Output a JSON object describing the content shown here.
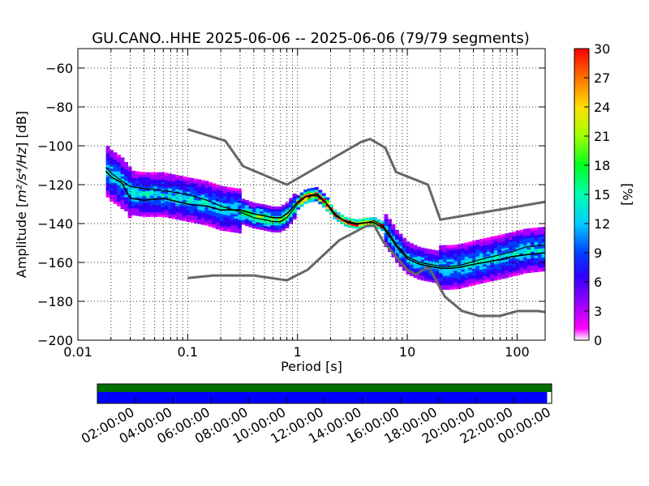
{
  "chart_data": {
    "type": "heatmap",
    "title": "GU.CANO..HHE   2025-06-06 -- 2025-06-06  (79/79 segments)",
    "xlabel": "Period [s]",
    "ylabel_prefix": "Amplitude [",
    "ylabel_math": "m²/s⁴/Hz",
    "ylabel_suffix": "] [dB]",
    "xscale": "log",
    "xlim": [
      0.01,
      180
    ],
    "ylim": [
      -200,
      -50
    ],
    "xticks": [
      0.01,
      0.1,
      1,
      10,
      100
    ],
    "xtick_labels": [
      "0.01",
      "0.1",
      "1",
      "10",
      "100"
    ],
    "yticks": [
      -60,
      -80,
      -100,
      -120,
      -140,
      -160,
      -180,
      -200
    ],
    "ytick_labels": [
      "−60",
      "−80",
      "−100",
      "−120",
      "−140",
      "−160",
      "−180",
      "−200"
    ],
    "grid": true,
    "colorbar": {
      "label": "[%]",
      "min": 0,
      "max": 30,
      "ticks": [
        0,
        3,
        6,
        9,
        12,
        15,
        18,
        21,
        24,
        27,
        30
      ],
      "tick_labels": [
        "0",
        "3",
        "6",
        "9",
        "12",
        "15",
        "18",
        "21",
        "24",
        "27",
        "30"
      ]
    },
    "noise_model_high": {
      "name": "",
      "x": [
        0.1,
        0.22,
        0.32,
        0.8,
        3.8,
        4.6,
        6.3,
        7.9,
        15.4,
        20,
        354
      ],
      "y": [
        -91.5,
        -97.4,
        -110.5,
        -120,
        -98,
        -96.5,
        -101,
        -113.5,
        -120,
        -138,
        -126
      ]
    },
    "noise_model_low": {
      "name": "",
      "x": [
        0.1,
        0.17,
        0.4,
        0.8,
        1.24,
        2.4,
        4.3,
        5,
        6,
        10,
        12,
        15.6,
        21.9,
        31.6,
        45,
        70,
        101,
        154,
        328
      ],
      "y": [
        -168,
        -166.7,
        -166.7,
        -169.2,
        -163.7,
        -148.6,
        -141.1,
        -141.1,
        -149,
        -163.8,
        -166.2,
        -162.1,
        -177.5,
        -185,
        -187.5,
        -187.5,
        -185,
        -185,
        -187.5
      ]
    },
    "mean_psd": {
      "x": [
        0.018,
        0.02,
        0.025,
        0.03,
        0.04,
        0.06,
        0.1,
        0.15,
        0.2,
        0.3,
        0.4,
        0.5,
        0.6,
        0.7,
        0.8,
        1,
        1.2,
        1.5,
        1.8,
        2.2,
        2.8,
        3.5,
        4.2,
        5,
        6,
        7,
        8,
        10,
        13,
        16,
        20,
        25,
        30,
        40,
        50,
        70,
        90,
        120,
        180
      ],
      "y": [
        -113,
        -116,
        -119,
        -127,
        -128,
        -127,
        -130,
        -131,
        -133,
        -133,
        -135,
        -136,
        -137,
        -137,
        -135,
        -129,
        -126,
        -125.5,
        -129,
        -136,
        -139,
        -140,
        -139.5,
        -139.5,
        -142,
        -147,
        -152,
        -158,
        -161,
        -162,
        -163,
        -163,
        -162.5,
        -161,
        -160,
        -158.5,
        -157,
        -156,
        -155
      ]
    },
    "mode_psd": {
      "x": [
        0.018,
        0.02,
        0.025,
        0.03,
        0.04,
        0.06,
        0.1,
        0.15,
        0.2,
        0.3,
        0.4,
        0.5,
        0.6,
        0.7,
        0.8,
        1,
        1.2,
        1.5,
        1.8,
        2.2,
        2.8,
        3.5,
        4.2,
        5,
        6,
        7,
        8,
        10,
        13,
        16,
        20,
        25,
        30,
        40,
        50,
        70,
        90,
        120,
        180
      ],
      "y": [
        -111,
        -114,
        -118,
        -121,
        -122,
        -123,
        -125,
        -128,
        -131,
        -134,
        -137,
        -138,
        -139,
        -139,
        -137,
        -130,
        -126,
        -124.5,
        -129,
        -135,
        -139.5,
        -140.5,
        -139.5,
        -138.5,
        -141,
        -146,
        -151,
        -157,
        -160,
        -161,
        -162,
        -162,
        -161.5,
        -159.5,
        -158,
        -156,
        -154.5,
        -152,
        -151
      ]
    },
    "heatmap_bands": [
      {
        "x_from": 0.018,
        "x_to": 0.03,
        "y_center": -115,
        "spread": 14
      },
      {
        "x_from": 0.03,
        "x_to": 0.3,
        "y_center": -127,
        "spread": 12
      },
      {
        "x_from": 0.3,
        "x_to": 1.0,
        "y_center": -136,
        "spread": 7
      },
      {
        "x_from": 1.0,
        "x_to": 2.0,
        "y_center": -127,
        "spread": 4
      },
      {
        "x_from": 2.0,
        "x_to": 6.0,
        "y_center": -140,
        "spread": 3
      },
      {
        "x_from": 6.0,
        "x_to": 20,
        "y_center": -155,
        "spread": 9
      },
      {
        "x_from": 20,
        "x_to": 180,
        "y_center": -159,
        "spread": 12
      }
    ],
    "timeline": {
      "tick_labels": [
        "02:00:00",
        "04:00:00",
        "06:00:00",
        "08:00:00",
        "10:00:00",
        "12:00:00",
        "14:00:00",
        "16:00:00",
        "18:00:00",
        "20:00:00",
        "22:00:00",
        "00:00:00"
      ],
      "data_coverage_fraction": 1.0,
      "segments_coverage_fraction": 0.99,
      "data_color": "#007000",
      "segments_color": "#0000ff"
    }
  }
}
